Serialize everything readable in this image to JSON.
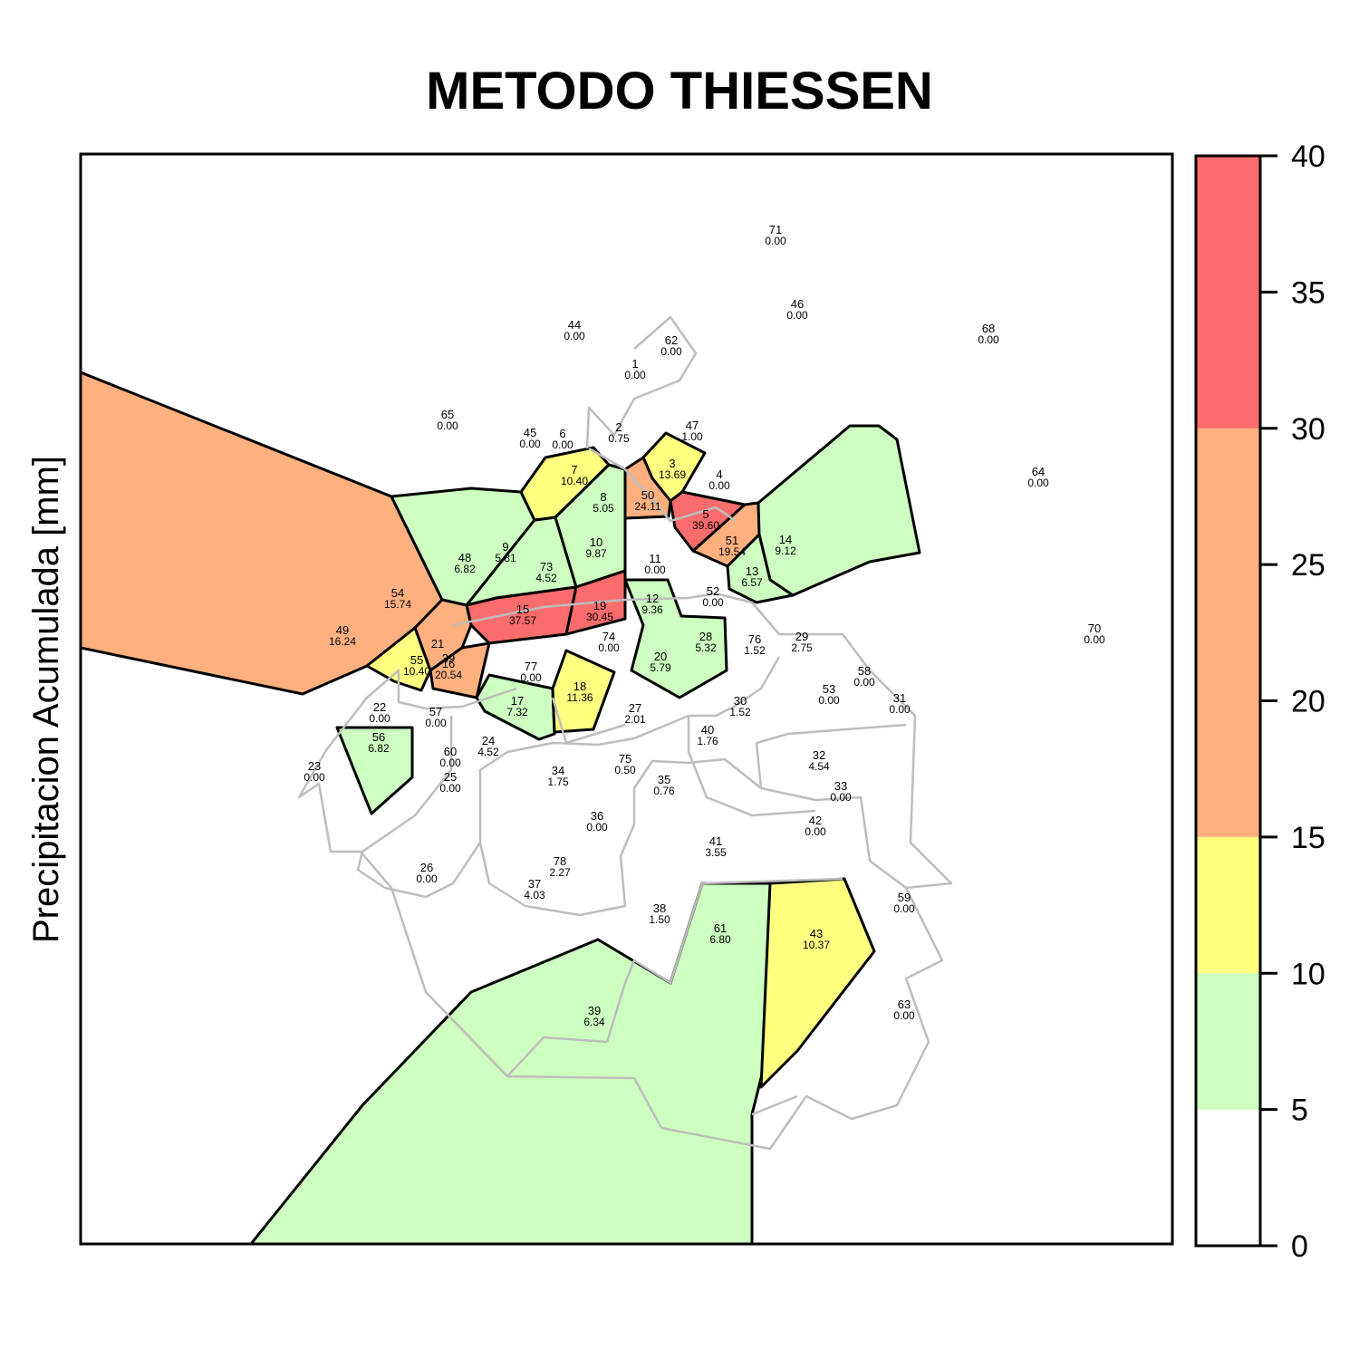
{
  "title": "METODO THIESSEN",
  "ylabel": "Precipitacion Acumulada [mm]",
  "legend": {
    "ticks": [
      "0",
      "5",
      "10",
      "15",
      "20",
      "25",
      "30",
      "35",
      "40"
    ],
    "classes": [
      {
        "from": 0,
        "to": 5,
        "color": "#FFFFFF"
      },
      {
        "from": 5,
        "to": 10,
        "color": "#CCFFC0"
      },
      {
        "from": 10,
        "to": 15,
        "color": "#FFFF80"
      },
      {
        "from": 15,
        "to": 30,
        "color": "#FFB07F"
      },
      {
        "from": 30,
        "to": 40,
        "color": "#FB6C6C"
      }
    ]
  },
  "stations": [
    {
      "id": "1",
      "value": "0.00"
    },
    {
      "id": "2",
      "value": "0.75"
    },
    {
      "id": "3",
      "value": "13.69"
    },
    {
      "id": "4",
      "value": "0.00"
    },
    {
      "id": "5",
      "value": "39.60"
    },
    {
      "id": "6",
      "value": "0.00"
    },
    {
      "id": "7",
      "value": "10.40"
    },
    {
      "id": "8",
      "value": "5.05"
    },
    {
      "id": "9",
      "value": "5.81"
    },
    {
      "id": "10",
      "value": "9.87"
    },
    {
      "id": "11",
      "value": "0.00"
    },
    {
      "id": "12",
      "value": "9.36"
    },
    {
      "id": "13",
      "value": "6.57"
    },
    {
      "id": "14",
      "value": "9.12"
    },
    {
      "id": "15",
      "value": "37.57"
    },
    {
      "id": "16",
      "value": "20.54"
    },
    {
      "id": "17",
      "value": "7.32"
    },
    {
      "id": "18",
      "value": "11.36"
    },
    {
      "id": "19",
      "value": "30.45"
    },
    {
      "id": "20",
      "value": "5.79"
    },
    {
      "id": "21",
      "value": ""
    },
    {
      "id": "22",
      "value": "0.00"
    },
    {
      "id": "23",
      "value": "0.00"
    },
    {
      "id": "24",
      "value": "4.52"
    },
    {
      "id": "25",
      "value": "0.00"
    },
    {
      "id": "26",
      "value": "0.00"
    },
    {
      "id": "27",
      "value": "2.01"
    },
    {
      "id": "28",
      "value": "5.32"
    },
    {
      "id": "29",
      "value": "2.75"
    },
    {
      "id": "30",
      "value": "1.52"
    },
    {
      "id": "31",
      "value": "0.00"
    },
    {
      "id": "32",
      "value": "4.54"
    },
    {
      "id": "33",
      "value": "0.00"
    },
    {
      "id": "34",
      "value": "1.75"
    },
    {
      "id": "35",
      "value": "0.76"
    },
    {
      "id": "36",
      "value": "0.00"
    },
    {
      "id": "37",
      "value": "4.03"
    },
    {
      "id": "38",
      "value": "1.50"
    },
    {
      "id": "39",
      "value": "6.34"
    },
    {
      "id": "39",
      "value": ""
    },
    {
      "id": "40",
      "value": "1.76"
    },
    {
      "id": "41",
      "value": "3.55"
    },
    {
      "id": "42",
      "value": "0.00"
    },
    {
      "id": "43",
      "value": "10.37"
    },
    {
      "id": "44",
      "value": "0.00"
    },
    {
      "id": "45",
      "value": "0.00"
    },
    {
      "id": "46",
      "value": "0.00"
    },
    {
      "id": "47",
      "value": "1.00"
    },
    {
      "id": "48",
      "value": "6.82"
    },
    {
      "id": "49",
      "value": "16.24"
    },
    {
      "id": "50",
      "value": "24.11"
    },
    {
      "id": "51",
      "value": "19.54"
    },
    {
      "id": "52",
      "value": "0.00"
    },
    {
      "id": "53",
      "value": "0.00"
    },
    {
      "id": "54",
      "value": "15.74"
    },
    {
      "id": "55",
      "value": "10.40"
    },
    {
      "id": "56",
      "value": "6.82"
    },
    {
      "id": "57",
      "value": "0.00"
    },
    {
      "id": "58",
      "value": "0.00"
    },
    {
      "id": "59",
      "value": "0.00"
    },
    {
      "id": "60",
      "value": "0.00"
    },
    {
      "id": "61",
      "value": "6.80"
    },
    {
      "id": "62",
      "value": "0.00"
    },
    {
      "id": "63",
      "value": "0.00"
    },
    {
      "id": "64",
      "value": "0.00"
    },
    {
      "id": "65",
      "value": "0.00"
    },
    {
      "id": "68",
      "value": "0.00"
    },
    {
      "id": "70",
      "value": "0.00"
    },
    {
      "id": "71",
      "value": "0.00"
    },
    {
      "id": "73",
      "value": "4.52"
    },
    {
      "id": "74",
      "value": "0.00"
    },
    {
      "id": "75",
      "value": "0.50"
    },
    {
      "id": "76",
      "value": "1.52"
    },
    {
      "id": "77",
      "value": "0.00"
    },
    {
      "id": "78",
      "value": "2.27"
    }
  ]
}
